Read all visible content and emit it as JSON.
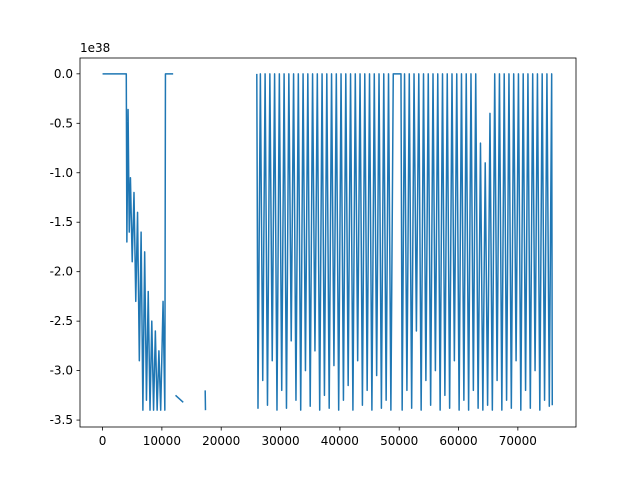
{
  "chart_data": {
    "type": "line",
    "offset_text": "1e38",
    "color": "#1f77b4",
    "x": [
      0,
      4000,
      4100,
      4300,
      4500,
      4700,
      5000,
      5300,
      5600,
      5900,
      6200,
      6500,
      6800,
      7100,
      7400,
      7700,
      8000,
      8300,
      8600,
      8900,
      9200,
      9500,
      9800,
      10200,
      10500,
      10600,
      11900,
      12200,
      12300,
      13600,
      13700,
      17300,
      17350,
      18000,
      26000,
      26200,
      26600,
      27000,
      27400,
      27800,
      28200,
      28600,
      29000,
      29400,
      29800,
      30200,
      30600,
      31000,
      31400,
      31800,
      32200,
      32600,
      33000,
      33400,
      33800,
      34200,
      34600,
      35000,
      35400,
      35800,
      36200,
      36600,
      37000,
      37400,
      37800,
      38200,
      38600,
      39000,
      39400,
      39800,
      40200,
      40600,
      41000,
      41400,
      41800,
      42200,
      42600,
      43000,
      43400,
      43800,
      44200,
      44600,
      45000,
      45400,
      45800,
      46200,
      46600,
      47000,
      47400,
      47800,
      48200,
      48600,
      49000,
      50300,
      50500,
      50900,
      51300,
      51700,
      52100,
      52500,
      52900,
      53300,
      53700,
      54100,
      54500,
      54900,
      55300,
      55700,
      56100,
      56500,
      56900,
      57300,
      57700,
      58100,
      58500,
      58900,
      59300,
      59700,
      60100,
      60500,
      60900,
      61300,
      61700,
      62100,
      62500,
      62900,
      63300,
      63700,
      64100,
      64500,
      64900,
      65300,
      65700,
      66100,
      66500,
      66900,
      67300,
      67700,
      68100,
      68500,
      68900,
      69300,
      69700,
      70100,
      70500,
      70900,
      71300,
      71700,
      72100,
      72500,
      72900,
      73300,
      73700,
      74100,
      74500,
      74900,
      75300,
      75700,
      75800
    ],
    "values": [
      0,
      0,
      -1.7,
      -0.36,
      -1.6,
      -1.05,
      -1.9,
      -1.2,
      -2.3,
      -1.4,
      -2.9,
      -1.6,
      -3.4,
      -1.8,
      -3.3,
      -2.2,
      -3.4,
      -2.5,
      -3.4,
      -2.6,
      -3.4,
      -2.8,
      -3.4,
      -2.3,
      -3.4,
      0,
      0,
      null,
      -3.25,
      -3.32,
      null,
      -3.2,
      -3.4,
      null,
      0,
      -3.38,
      0,
      -3.1,
      0,
      -3.35,
      0,
      -2.9,
      0,
      -3.4,
      0,
      -3.2,
      0,
      -3.38,
      0,
      -2.7,
      0,
      -3.3,
      0,
      -3.4,
      0,
      -3.0,
      0,
      -3.36,
      0,
      -2.8,
      0,
      -3.4,
      0,
      -3.25,
      0,
      -3.38,
      0,
      -2.95,
      0,
      -3.4,
      0,
      -3.3,
      0,
      -3.15,
      0,
      -3.4,
      0,
      -2.9,
      0,
      -3.35,
      0,
      -3.2,
      0,
      -3.4,
      0,
      -3.05,
      0,
      -3.38,
      0,
      -3.3,
      0,
      -3.4,
      0,
      0,
      -3.4,
      0,
      -3.2,
      0,
      -3.38,
      0,
      -2.6,
      0,
      -3.4,
      0,
      -3.1,
      0,
      -3.35,
      0,
      -3.0,
      0,
      -3.4,
      0,
      -3.25,
      0,
      -3.38,
      0,
      -2.9,
      0,
      -3.4,
      0,
      -3.3,
      0,
      -3.4,
      0,
      -3.2,
      0,
      -3.38,
      -0.7,
      -3.4,
      -0.9,
      -3.35,
      -0.4,
      -3.4,
      0,
      -3.1,
      0,
      -3.4,
      0,
      -3.3,
      0,
      -3.38,
      0,
      -2.9,
      0,
      -3.4,
      0,
      -3.2,
      0,
      -3.38,
      0,
      -3.0,
      0,
      -3.4,
      0,
      -3.3,
      0,
      -3.36,
      0,
      -3.35
    ],
    "xlim": [
      -3800,
      79800
    ],
    "xticks": [
      0,
      10000,
      20000,
      30000,
      40000,
      50000,
      60000,
      70000
    ],
    "ylim": [
      -3.57,
      0.16
    ],
    "yticks": [
      {
        "value": 0,
        "label": "0.0"
      },
      -0.5,
      {
        "value": -1,
        "label": "-1.0"
      },
      -1.5,
      {
        "value": -2,
        "label": "-2.0"
      },
      -2.5,
      {
        "value": -3,
        "label": "-3.0"
      },
      -3.5
    ]
  }
}
